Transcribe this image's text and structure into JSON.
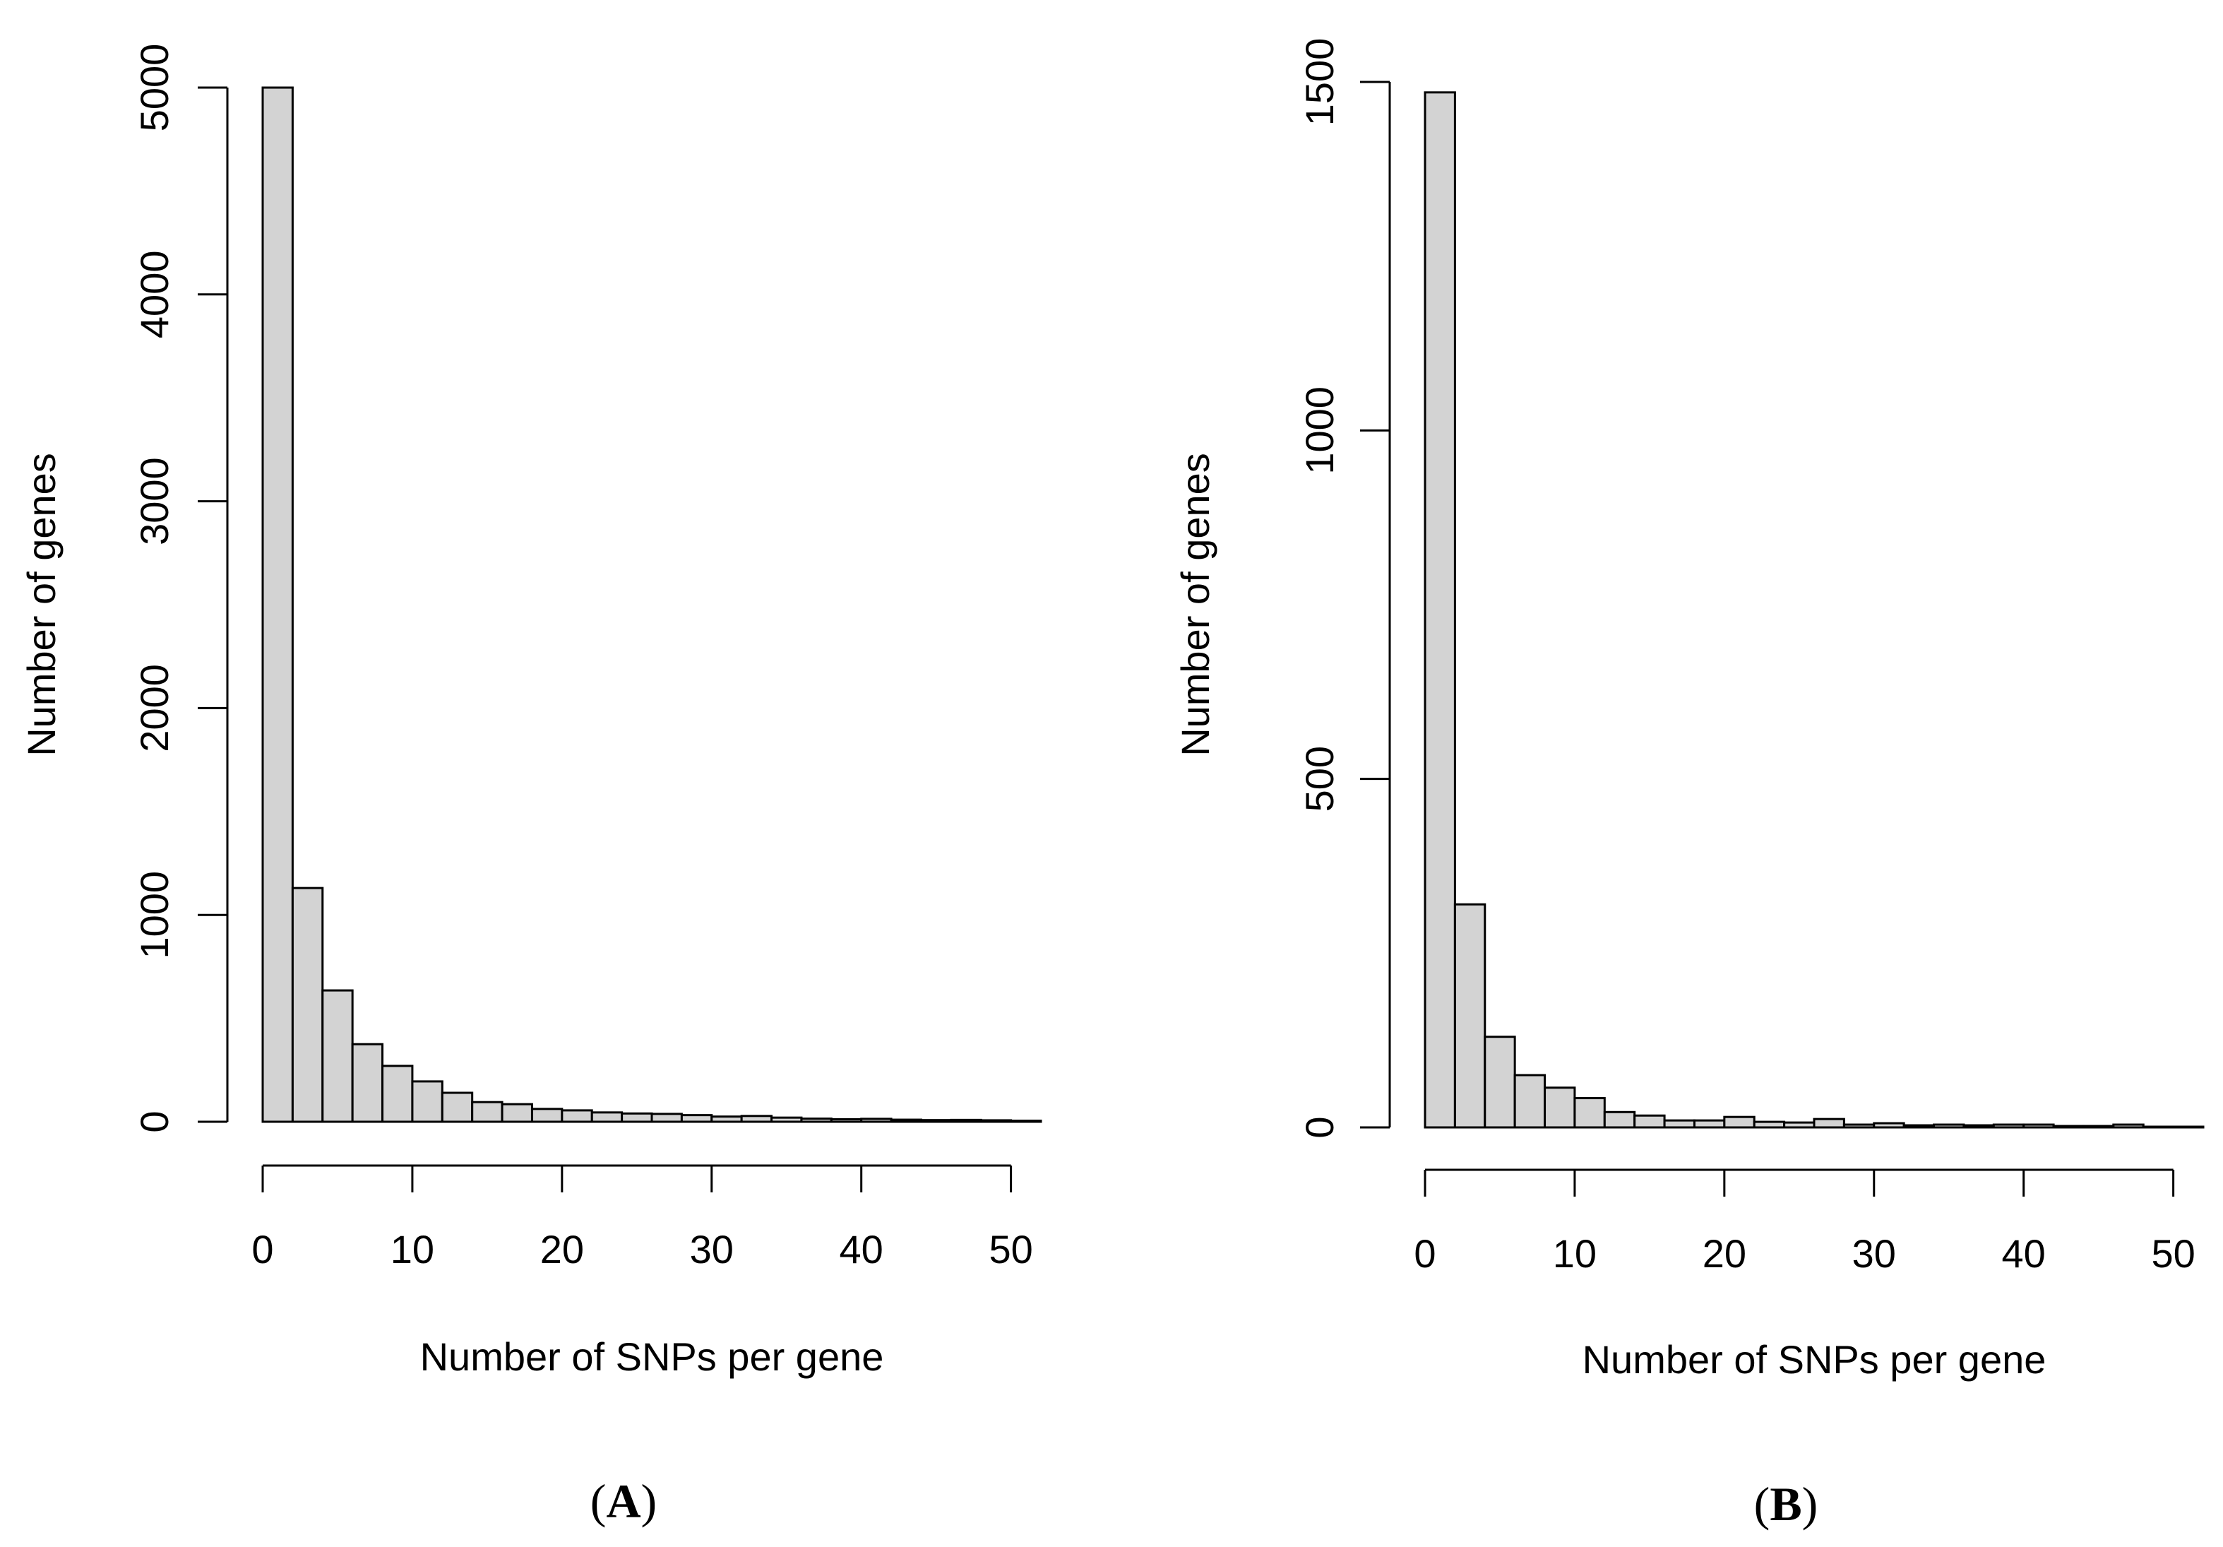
{
  "chart_data": [
    {
      "type": "bar",
      "chart_subtype": "histogram",
      "panel_label": "A",
      "xlabel": "Number of SNPs per gene",
      "ylabel": "Number of genes",
      "xlim": [
        0,
        52
      ],
      "ylim": [
        0,
        5000
      ],
      "xticks": [
        0,
        10,
        20,
        30,
        40,
        50
      ],
      "yticks": [
        0,
        1000,
        2000,
        3000,
        4000,
        5000
      ],
      "bin_width": 2,
      "bin_start": 0,
      "values": [
        5000,
        1130,
        635,
        375,
        270,
        195,
        140,
        95,
        85,
        62,
        55,
        45,
        40,
        38,
        32,
        25,
        28,
        20,
        15,
        12,
        14,
        10,
        8,
        9,
        7,
        5
      ],
      "bar_color": "#d3d3d3",
      "grid": false
    },
    {
      "type": "bar",
      "chart_subtype": "histogram",
      "panel_label": "B",
      "xlabel": "Number of SNPs per gene",
      "ylabel": "Number of genes",
      "xlim": [
        0,
        52
      ],
      "ylim": [
        0,
        1500
      ],
      "xticks": [
        0,
        10,
        20,
        30,
        40,
        50
      ],
      "yticks": [
        0,
        500,
        1000,
        1500
      ],
      "bin_width": 2,
      "bin_start": 0,
      "values": [
        1485,
        320,
        130,
        75,
        57,
        42,
        22,
        17,
        10,
        10,
        15,
        8,
        7,
        12,
        4,
        6,
        3,
        4,
        3,
        4,
        4,
        2,
        2,
        4,
        1,
        1
      ],
      "bar_color": "#d3d3d3",
      "grid": false
    }
  ]
}
